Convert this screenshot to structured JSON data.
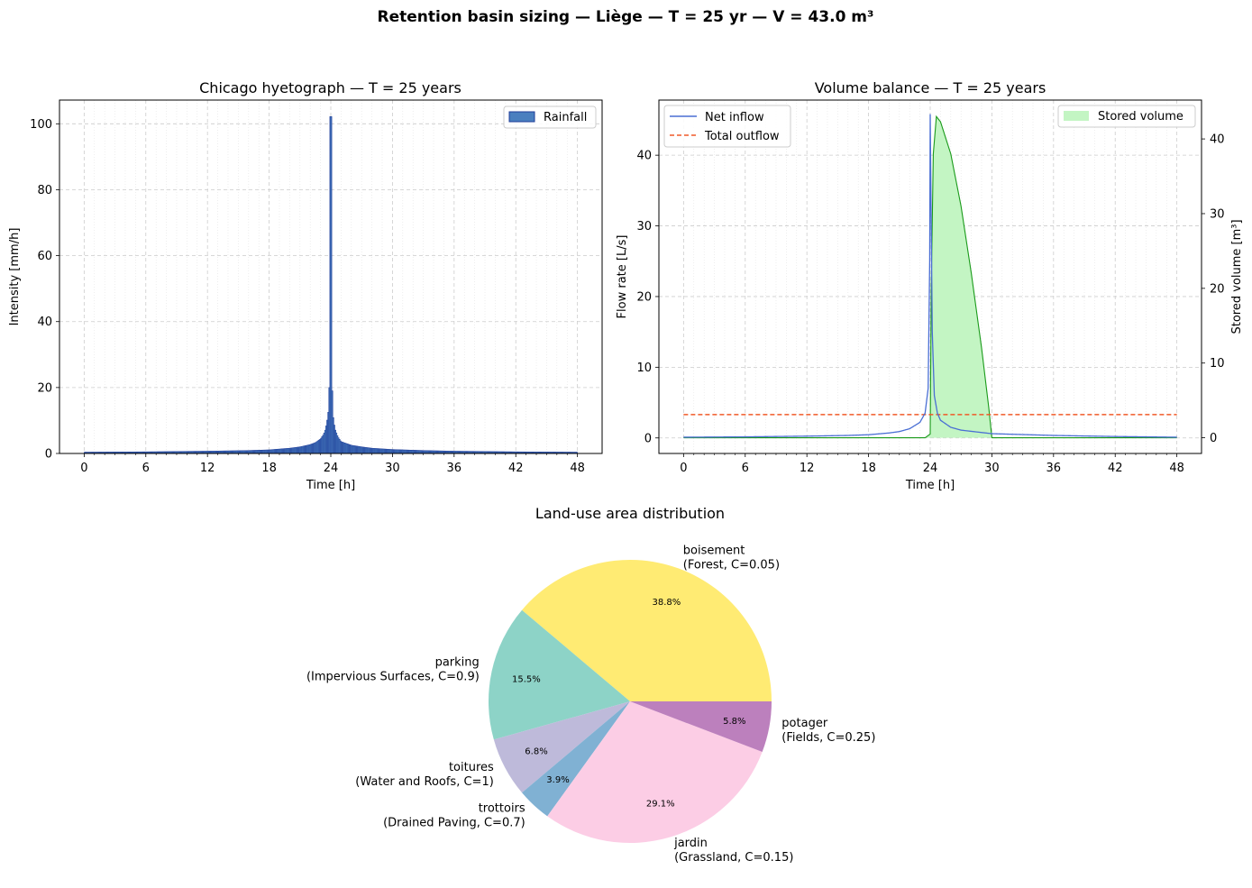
{
  "suptitle": "Retention basin sizing — Liège — T = 25 yr — V = 43.0 m³",
  "colors": {
    "rain": "#4a7fbf",
    "rain_edge": "#1f3d99",
    "net_inflow": "#4a6fd4",
    "outflow": "#f05a28",
    "stored_fill": "#c3f5c3",
    "stored_line": "#1a9a1a",
    "grid": "#cccccc",
    "pie": [
      "#ffeb73",
      "#8dd3c7",
      "#bebada",
      "#80b1d3",
      "#fccde5",
      "#bc80bd"
    ]
  },
  "chart_data": [
    {
      "type": "bar",
      "title": "Chicago hyetograph — T = 25 years",
      "xlabel": "Time [h]",
      "ylabel": "Intensity [mm/h]",
      "xlim": [
        -2.4,
        50.4
      ],
      "ylim": [
        0,
        107.2
      ],
      "xticks": [
        0,
        6,
        12,
        18,
        24,
        30,
        36,
        42,
        48
      ],
      "yticks": [
        0,
        20,
        40,
        60,
        80,
        100
      ],
      "legend": {
        "position": "top-right",
        "label": "Rainfall"
      },
      "peak_time": 24,
      "peak_value": 102.2,
      "profile": [
        [
          0,
          0.4
        ],
        [
          6,
          0.5
        ],
        [
          12,
          0.7
        ],
        [
          16,
          0.9
        ],
        [
          18,
          1.1
        ],
        [
          20,
          1.6
        ],
        [
          21,
          2.0
        ],
        [
          22,
          2.7
        ],
        [
          22.5,
          3.3
        ],
        [
          23,
          4.4
        ],
        [
          23.3,
          5.8
        ],
        [
          23.5,
          7.5
        ],
        [
          23.7,
          11
        ],
        [
          23.8,
          14
        ],
        [
          23.9,
          26
        ],
        [
          23.95,
          46
        ],
        [
          24,
          102.2
        ],
        [
          24.1,
          26
        ],
        [
          24.2,
          12
        ],
        [
          24.4,
          7.5
        ],
        [
          24.7,
          5
        ],
        [
          25,
          3.6
        ],
        [
          26,
          2.5
        ],
        [
          27,
          2.0
        ],
        [
          28,
          1.6
        ],
        [
          30,
          1.2
        ],
        [
          33,
          0.9
        ],
        [
          36,
          0.7
        ],
        [
          42,
          0.5
        ],
        [
          48,
          0.4
        ]
      ]
    },
    {
      "type": "line",
      "title": "Volume balance — T = 25 years",
      "xlabel": "Time [h]",
      "ylabel": "Flow rate [L/s]",
      "y2label": "Stored volume [m³]",
      "xlim": [
        -2.4,
        50.4
      ],
      "ylim": [
        -2.2,
        47.8
      ],
      "y2lim": [
        -2.1,
        45.2
      ],
      "xticks": [
        0,
        6,
        12,
        18,
        24,
        30,
        36,
        42,
        48
      ],
      "yticks": [
        0,
        10,
        20,
        30,
        40
      ],
      "y2ticks": [
        0,
        10,
        20,
        30,
        40
      ],
      "legend_left": {
        "position": "top-left",
        "entries": [
          "Net inflow",
          "Total outflow"
        ]
      },
      "legend_right": {
        "position": "top-right",
        "entries": [
          "Stored volume"
        ]
      },
      "series": [
        {
          "name": "Net inflow",
          "points": [
            [
              0,
              0.1
            ],
            [
              6,
              0.15
            ],
            [
              12,
              0.25
            ],
            [
              16,
              0.35
            ],
            [
              18,
              0.45
            ],
            [
              20,
              0.7
            ],
            [
              21,
              0.9
            ],
            [
              22,
              1.3
            ],
            [
              23,
              2.2
            ],
            [
              23.5,
              3.5
            ],
            [
              23.8,
              7
            ],
            [
              23.95,
              25
            ],
            [
              24,
              45.8
            ],
            [
              24.1,
              30
            ],
            [
              24.2,
              15
            ],
            [
              24.4,
              6
            ],
            [
              24.7,
              3.5
            ],
            [
              25,
              2.5
            ],
            [
              26,
              1.5
            ],
            [
              27,
              1.1
            ],
            [
              30,
              0.6
            ],
            [
              36,
              0.35
            ],
            [
              42,
              0.2
            ],
            [
              48,
              0.1
            ]
          ]
        },
        {
          "name": "Total outflow",
          "points": [
            [
              0,
              3.3
            ],
            [
              48,
              3.3
            ]
          ]
        },
        {
          "name": "Stored volume",
          "axis": "right",
          "points": [
            [
              0,
              0
            ],
            [
              23.5,
              0
            ],
            [
              24,
              0.5
            ],
            [
              24.1,
              20
            ],
            [
              24.3,
              38
            ],
            [
              24.6,
              43.0
            ],
            [
              25,
              42.3
            ],
            [
              26,
              38
            ],
            [
              27,
              31
            ],
            [
              28,
              22
            ],
            [
              29,
              12
            ],
            [
              29.7,
              4
            ],
            [
              30,
              0
            ],
            [
              48,
              0
            ]
          ]
        }
      ]
    },
    {
      "type": "pie",
      "title": "Land-use area distribution",
      "slices": [
        {
          "name": "boisement",
          "desc": "(Forest, C=0.05)",
          "value": 38.8,
          "pct": "38.8%"
        },
        {
          "name": "parking",
          "desc": "(Impervious Surfaces, C=0.9)",
          "value": 15.5,
          "pct": "15.5%"
        },
        {
          "name": "toitures",
          "desc": "(Water and Roofs, C=1)",
          "value": 6.8,
          "pct": "6.8%"
        },
        {
          "name": "trottoirs",
          "desc": "(Drained Paving, C=0.7)",
          "value": 3.9,
          "pct": "3.9%"
        },
        {
          "name": "jardin",
          "desc": "(Grassland, C=0.15)",
          "value": 29.1,
          "pct": "29.1%"
        },
        {
          "name": "potager",
          "desc": "(Fields, C=0.25)",
          "value": 5.8,
          "pct": "5.8%"
        }
      ]
    }
  ]
}
